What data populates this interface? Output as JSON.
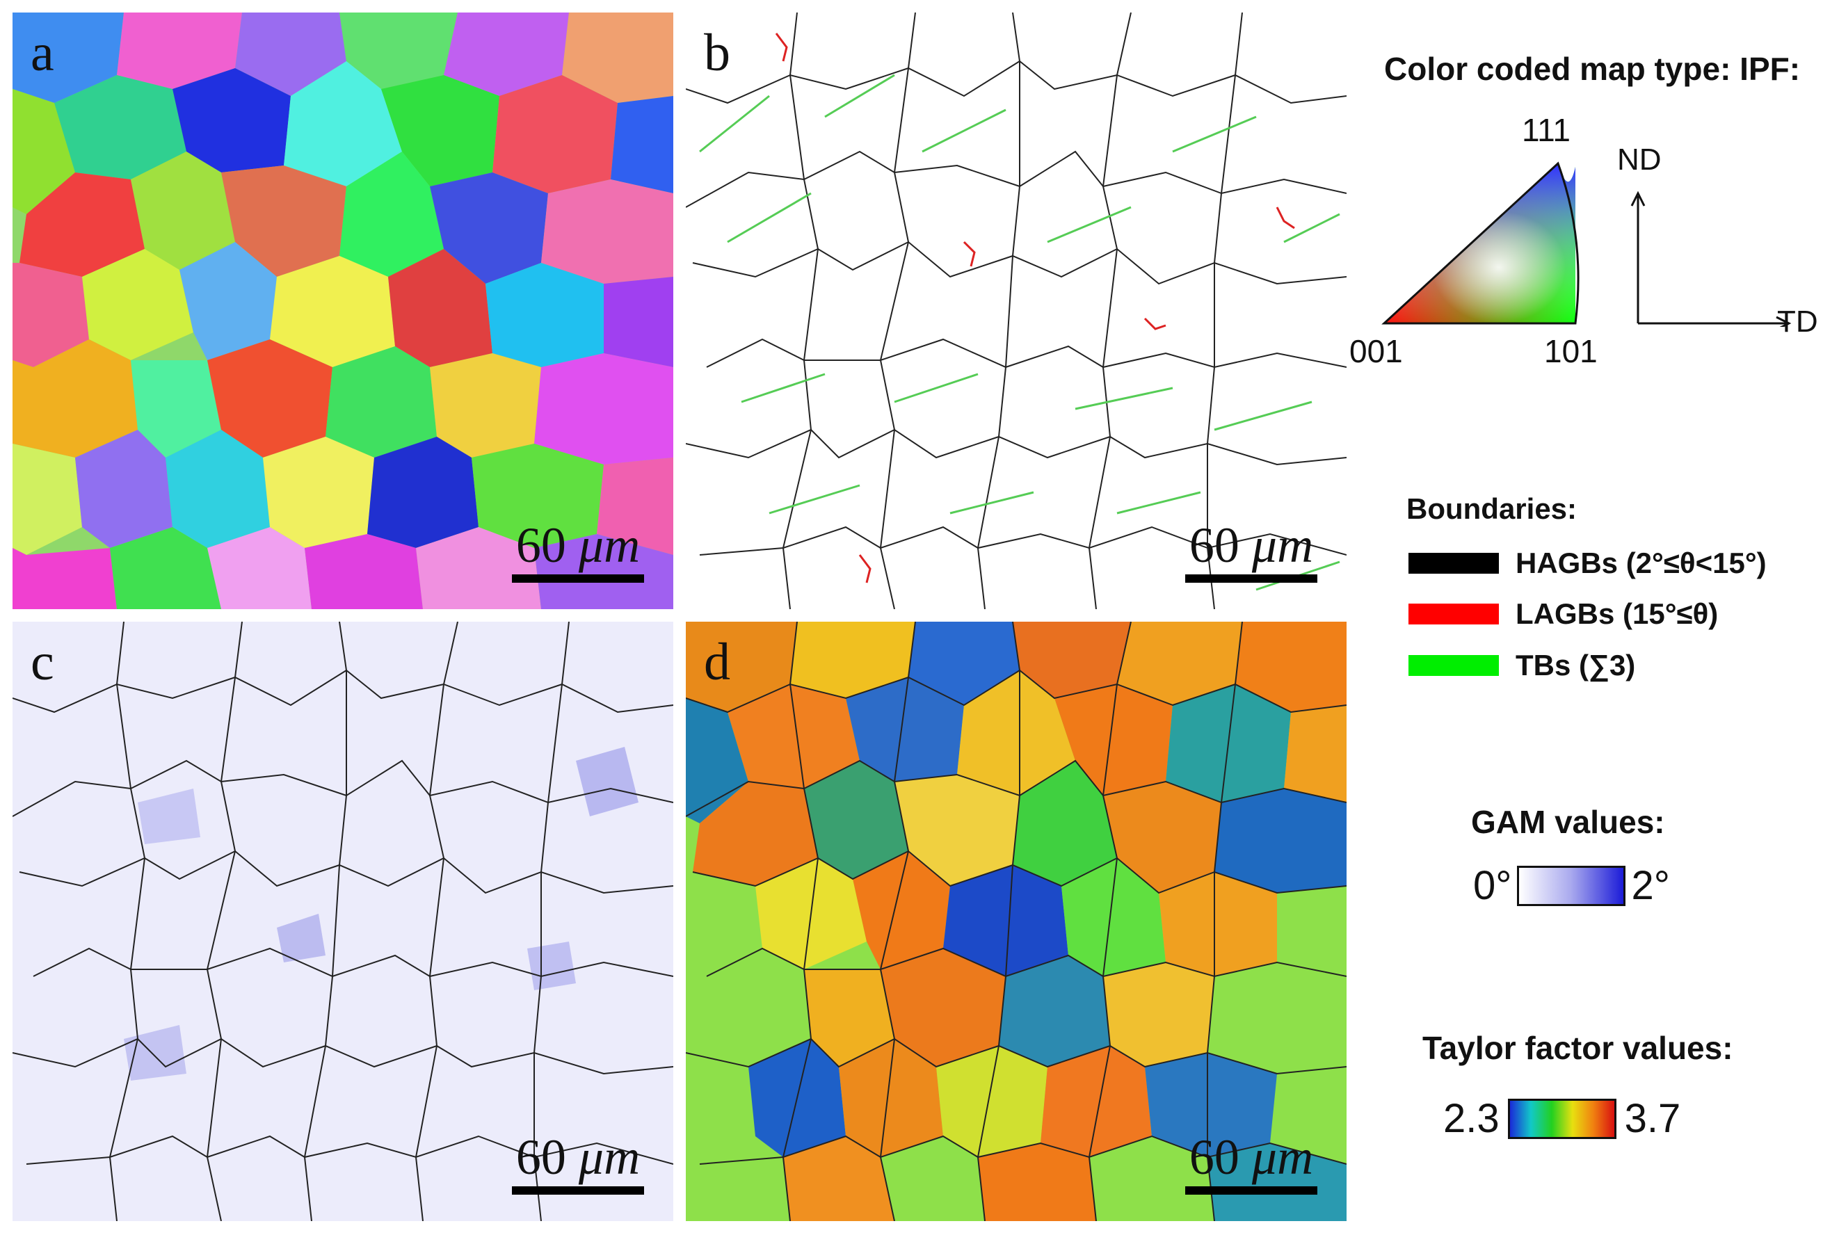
{
  "panels": {
    "a": {
      "letter": "a",
      "scalebar": {
        "value": "60",
        "unit": "μm"
      }
    },
    "b": {
      "letter": "b",
      "scalebar": {
        "value": "60",
        "unit": "μm"
      }
    },
    "c": {
      "letter": "c",
      "scalebar": {
        "value": "60",
        "unit": "μm"
      }
    },
    "d": {
      "letter": "d",
      "scalebar": {
        "value": "60",
        "unit": "μm"
      }
    }
  },
  "ipf_legend": {
    "title": "Color coded map type: IPF:",
    "corners": {
      "top": "111",
      "left": "001",
      "right": "101"
    },
    "axes": {
      "vertical": "ND",
      "horizontal": "TD"
    }
  },
  "boundaries_legend": {
    "title": "Boundaries:",
    "items": [
      {
        "label": "HAGBs (2°≤θ<15°)",
        "color": "#000000"
      },
      {
        "label": "LAGBs (15°≤θ)",
        "color": "#ff0000"
      },
      {
        "label": "TBs (∑3)",
        "color": "#00ee00"
      }
    ]
  },
  "gam_legend": {
    "title": "GAM values:",
    "min": "0°",
    "max": "2°"
  },
  "taylor_legend": {
    "title": "Taylor factor values:",
    "min": "2.3",
    "max": "3.7"
  }
}
